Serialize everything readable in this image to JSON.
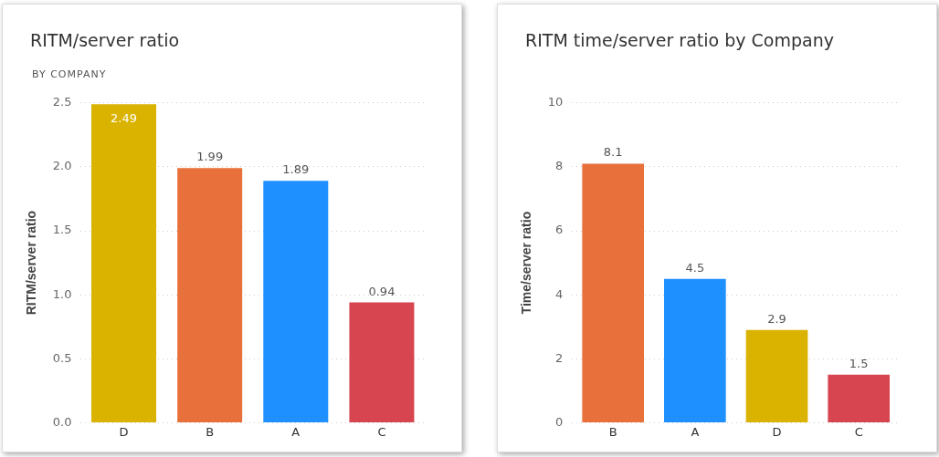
{
  "chart_data": [
    {
      "type": "bar",
      "title": "RITM/server ratio",
      "subtitle": "BY COMPANY",
      "ylabel": "RITM/server ratio",
      "categories": [
        "D",
        "B",
        "A",
        "C"
      ],
      "values": [
        2.49,
        1.99,
        1.89,
        0.94
      ],
      "colors": [
        "#d9b300",
        "#e8703a",
        "#1e90ff",
        "#d64550"
      ],
      "ylim": [
        0,
        2.5
      ],
      "yticks": [
        {
          "value": 0,
          "label": "0.0"
        },
        {
          "value": 0.5,
          "label": "0.5"
        },
        {
          "value": 1,
          "label": "1.0"
        },
        {
          "value": 1.5,
          "label": "1.5"
        },
        {
          "value": 2,
          "label": "2.0"
        },
        {
          "value": 2.5,
          "label": "2.5"
        }
      ],
      "grid": "y",
      "data_labels": true
    },
    {
      "type": "bar",
      "title": "RITM time/server ratio by Company",
      "ylabel": "Time/server ratio",
      "categories": [
        "B",
        "A",
        "D",
        "C"
      ],
      "values": [
        8.1,
        4.5,
        2.9,
        1.5
      ],
      "colors": [
        "#e8703a",
        "#1e90ff",
        "#d9b300",
        "#d64550"
      ],
      "ylim": [
        0,
        10
      ],
      "yticks": [
        0,
        2,
        4,
        6,
        8,
        10
      ],
      "grid": "y",
      "data_labels": true
    }
  ]
}
